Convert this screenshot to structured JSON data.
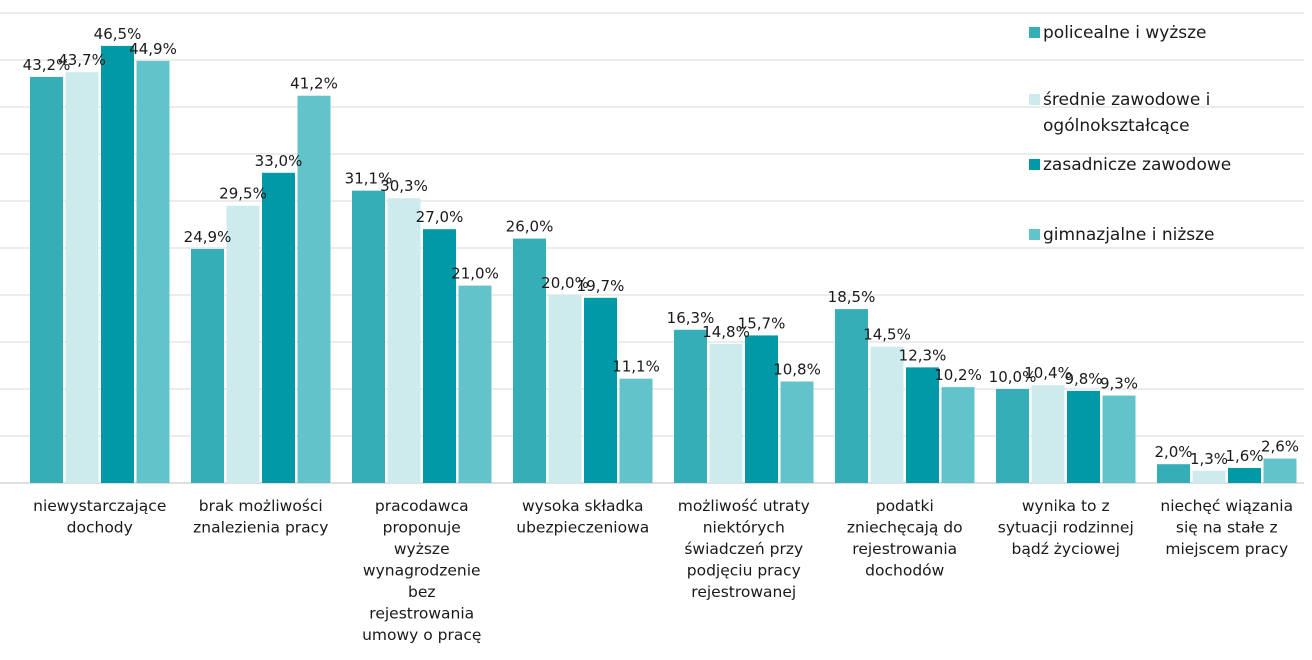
{
  "chart_data": {
    "type": "bar",
    "title": "",
    "xlabel": "",
    "ylabel": "",
    "ylim": [
      0,
      50
    ],
    "grid": true,
    "legend_position": "top-right",
    "categories": [
      [
        "niewystarczające",
        "dochody"
      ],
      [
        "brak możliwości",
        "znalezienia pracy"
      ],
      [
        "pracodawca",
        "proponuje",
        "wyższe",
        "wynagrodzenie",
        "bez",
        "rejestrowania",
        "umowy o pracę"
      ],
      [
        "wysoka składka",
        "ubezpieczeniowa"
      ],
      [
        "możliwość utraty",
        "niektórych",
        "świadczeń przy",
        "podjęciu pracy",
        "rejestrowanej"
      ],
      [
        "podatki",
        "zniechęcają do",
        "rejestrowania",
        "dochodów"
      ],
      [
        "wynika to z",
        "sytuacji rodzinnej",
        "bądź życiowej"
      ],
      [
        "niechęć wiązania",
        "się na stałe z",
        "miejscem pracy"
      ]
    ],
    "series": [
      {
        "name": "policealne i wyższe",
        "color": "#36aeb8",
        "values": [
          43.2,
          24.9,
          31.1,
          26.0,
          16.3,
          18.5,
          10.0,
          2.0
        ],
        "labels": [
          "43,2%",
          "24,9%",
          "31,1%",
          "26,0%",
          "16,3%",
          "18,5%",
          "10,0%",
          "2,0%"
        ]
      },
      {
        "name": [
          "średnie zawodowe i",
          "ogólnokształcące"
        ],
        "color": "#cdebed",
        "values": [
          43.7,
          29.5,
          30.3,
          20.0,
          14.8,
          14.5,
          10.4,
          1.3
        ],
        "labels": [
          "43,7%",
          "29,5%",
          "30,3%",
          "20,0%",
          "14,8%",
          "14,5%",
          "10,4%",
          "1,3%"
        ]
      },
      {
        "name": "zasadnicze zawodowe",
        "color": "#0199a5",
        "values": [
          46.5,
          33.0,
          27.0,
          19.7,
          15.7,
          12.3,
          9.8,
          1.6
        ],
        "labels": [
          "46,5%",
          "33,0%",
          "27,0%",
          "19,7%",
          "15,7%",
          "12,3%",
          "9,8%",
          "1,6%"
        ]
      },
      {
        "name": "gimnazjalne i niższe",
        "color": "#62c4ca",
        "values": [
          44.9,
          41.2,
          21.0,
          11.1,
          10.8,
          10.2,
          9.3,
          2.6
        ],
        "labels": [
          "44,9%",
          "41,2%",
          "21,0%",
          "11,1%",
          "10,8%",
          "10,2%",
          "9,3%",
          "2,6%"
        ]
      }
    ]
  }
}
